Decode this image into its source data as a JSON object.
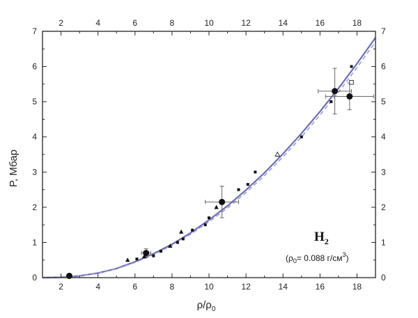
{
  "chart_data": {
    "type": "scatter",
    "xlabel_main": "ρ/ρ",
    "xlabel_sub": "0",
    "ylabel": "P, Мбар",
    "xlim": [
      1,
      19
    ],
    "ylim": [
      0,
      7
    ],
    "xticks": [
      "2",
      "4",
      "6",
      "8",
      "10",
      "12",
      "14",
      "16",
      "18"
    ],
    "yticks": [
      "0",
      "1",
      "2",
      "3",
      "4",
      "5",
      "6",
      "7"
    ],
    "annotation": {
      "formula": "H",
      "formula_sub": "2",
      "note_prefix": "(ρ",
      "note_prefix_sub": "0",
      "note_body": "= 0.088 г/см",
      "note_sup": "3",
      "note_suffix": ")"
    },
    "curves": [
      {
        "style": "solid",
        "color": "#6b6bb8",
        "x": [
          1,
          2,
          3,
          4,
          5,
          6,
          7,
          8,
          9,
          10,
          11,
          12,
          13,
          14,
          15,
          16,
          17,
          18,
          19
        ],
        "y": [
          0.0,
          0.01,
          0.05,
          0.13,
          0.26,
          0.45,
          0.68,
          0.95,
          1.27,
          1.64,
          2.04,
          2.49,
          2.98,
          3.52,
          4.1,
          4.72,
          5.38,
          6.08,
          6.82
        ]
      },
      {
        "style": "dashed",
        "color": "#9a9ad8",
        "x": [
          1,
          2,
          3,
          4,
          5,
          6,
          7,
          8,
          9,
          10,
          11,
          12,
          13,
          14,
          15,
          16,
          17,
          18,
          19
        ],
        "y": [
          0.0,
          0.01,
          0.05,
          0.12,
          0.25,
          0.43,
          0.65,
          0.92,
          1.23,
          1.59,
          1.98,
          2.42,
          2.9,
          3.43,
          4.0,
          4.62,
          5.27,
          5.97,
          6.7
        ]
      }
    ],
    "points": [
      {
        "x": 2.45,
        "y": 0.05,
        "marker": "circle-large"
      },
      {
        "x": 6.6,
        "y": 0.7,
        "marker": "circle-large",
        "xerr": 0.25,
        "yerr": 0.12
      },
      {
        "x": 10.7,
        "y": 2.15,
        "marker": "circle-large",
        "xerr": 0.9,
        "yerr": 0.45
      },
      {
        "x": 16.8,
        "y": 5.3,
        "marker": "circle-large",
        "xerr": 0.9,
        "yerr": 0.65
      },
      {
        "x": 17.6,
        "y": 5.15,
        "marker": "circle-large",
        "xerr": 1.3,
        "yerr": 0.38
      },
      {
        "x": 5.6,
        "y": 0.5,
        "marker": "triangle"
      },
      {
        "x": 6.1,
        "y": 0.53,
        "marker": "square-small"
      },
      {
        "x": 6.5,
        "y": 0.6,
        "marker": "triangle"
      },
      {
        "x": 7.0,
        "y": 0.62,
        "marker": "square-small"
      },
      {
        "x": 7.4,
        "y": 0.75,
        "marker": "square-small"
      },
      {
        "x": 7.9,
        "y": 0.9,
        "marker": "triangle"
      },
      {
        "x": 8.3,
        "y": 1.0,
        "marker": "square-small"
      },
      {
        "x": 8.5,
        "y": 1.3,
        "marker": "triangle"
      },
      {
        "x": 8.6,
        "y": 1.1,
        "marker": "square-small"
      },
      {
        "x": 9.1,
        "y": 1.35,
        "marker": "square-small"
      },
      {
        "x": 9.8,
        "y": 1.5,
        "marker": "square-small"
      },
      {
        "x": 10.0,
        "y": 1.7,
        "marker": "square-small"
      },
      {
        "x": 10.4,
        "y": 2.0,
        "marker": "triangle"
      },
      {
        "x": 11.6,
        "y": 2.5,
        "marker": "square-small"
      },
      {
        "x": 12.1,
        "y": 2.65,
        "marker": "square-small"
      },
      {
        "x": 12.5,
        "y": 3.0,
        "marker": "square-small"
      },
      {
        "x": 13.7,
        "y": 3.5,
        "marker": "triangle-open"
      },
      {
        "x": 15.0,
        "y": 4.0,
        "marker": "square-small"
      },
      {
        "x": 16.6,
        "y": 5.0,
        "marker": "square-small"
      },
      {
        "x": 17.7,
        "y": 5.55,
        "marker": "square-open"
      },
      {
        "x": 17.7,
        "y": 6.0,
        "marker": "square-small"
      }
    ]
  }
}
